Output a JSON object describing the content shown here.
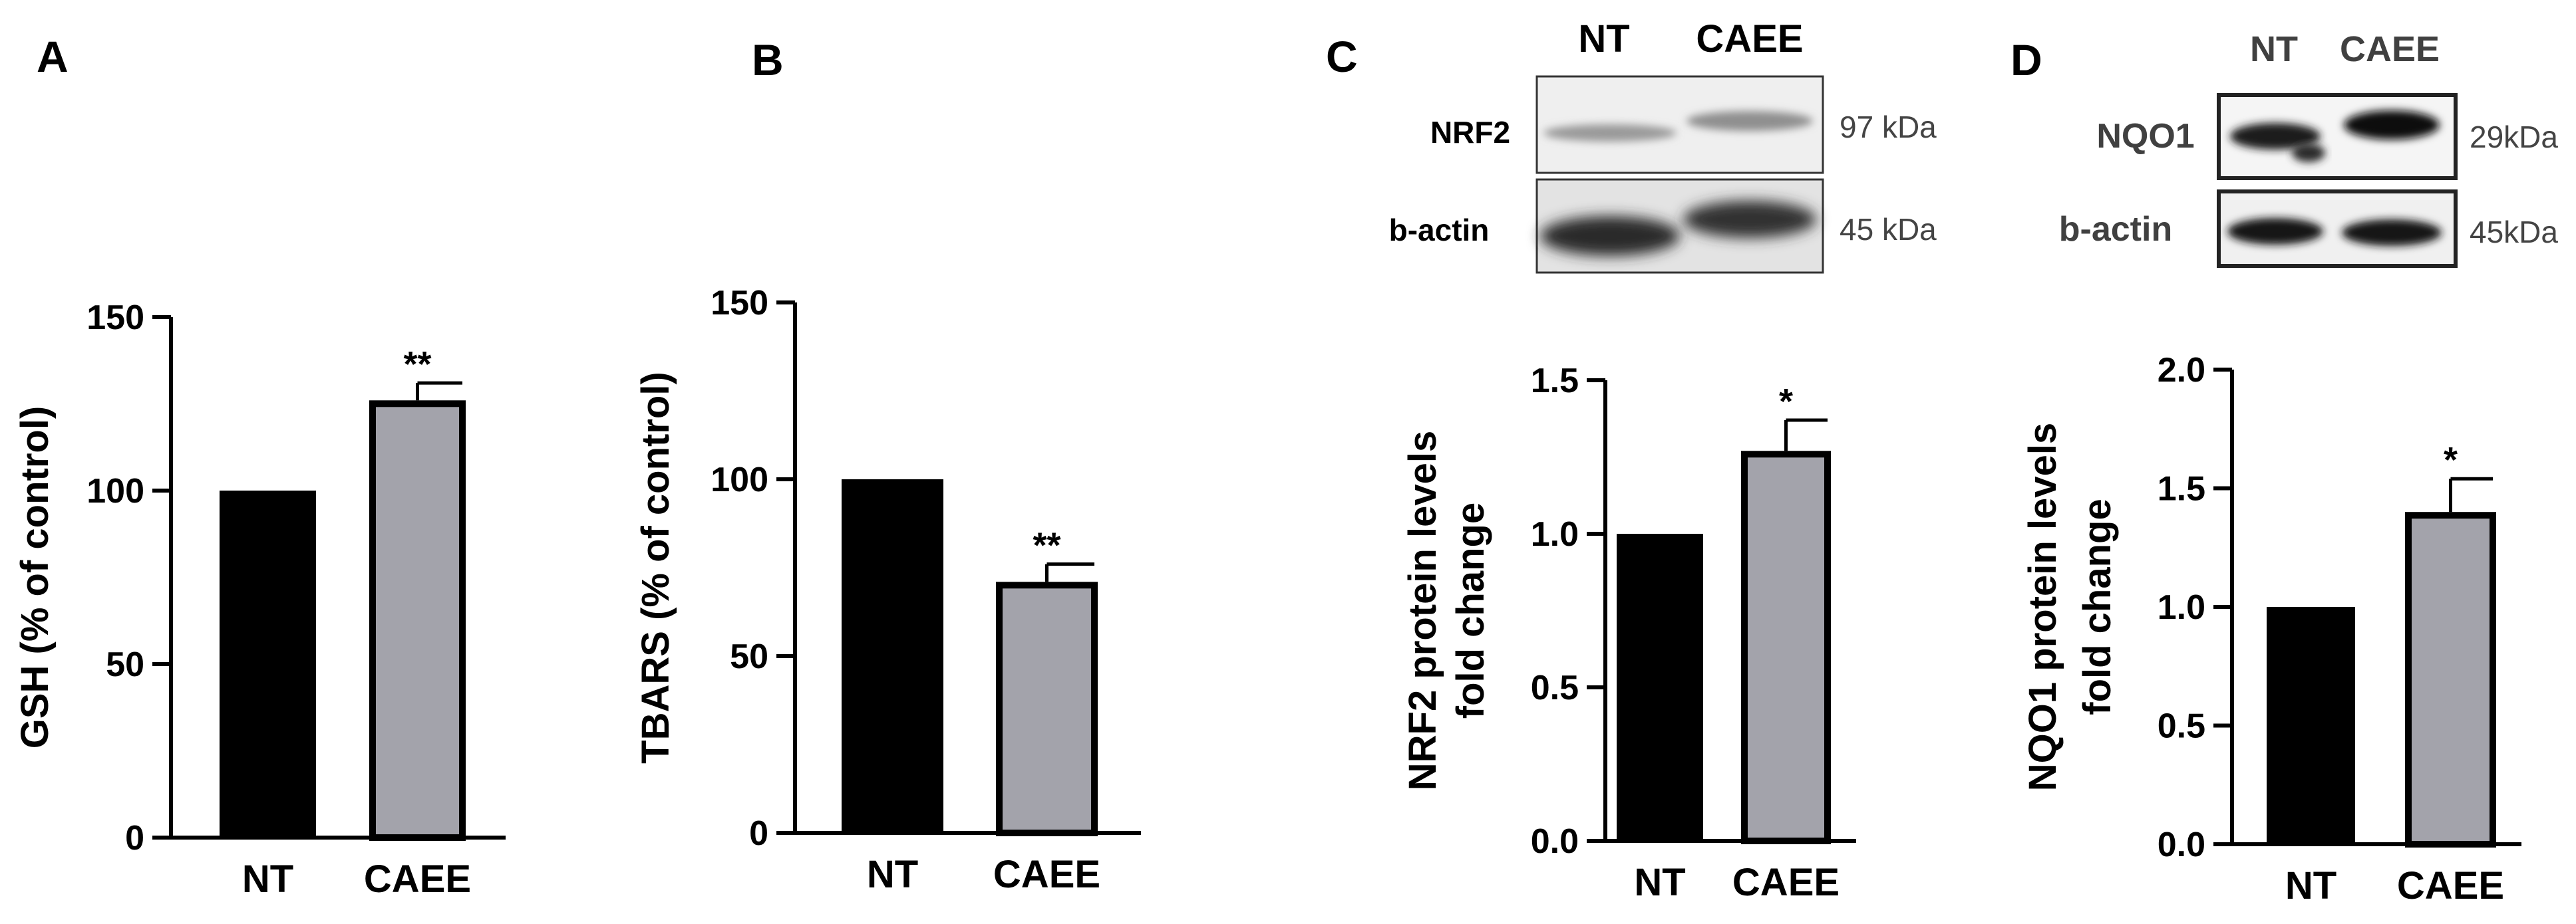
{
  "figure": {
    "panels": [
      {
        "id": "A",
        "letter": "A"
      },
      {
        "id": "B",
        "letter": "B"
      },
      {
        "id": "C",
        "letter": "C"
      },
      {
        "id": "D",
        "letter": "D"
      }
    ]
  },
  "blots": {
    "C": {
      "lanes": [
        "NT",
        "CAEE"
      ],
      "rows": [
        {
          "protein": "NRF2",
          "kda": "97 kDa"
        },
        {
          "protein": "b-actin",
          "kda": "45 kDa"
        }
      ]
    },
    "D": {
      "lanes": [
        "NT",
        "CAEE"
      ],
      "rows": [
        {
          "protein": "NQO1",
          "kda": "29kDa"
        },
        {
          "protein": "b-actin",
          "kda": "45kDa"
        }
      ]
    }
  },
  "chart_data": [
    {
      "panel": "A",
      "type": "bar",
      "title": "",
      "xlabel": "",
      "ylabel": "GSH (% of control)",
      "ylim": [
        0,
        150
      ],
      "yticks": [
        "0",
        "50",
        "100",
        "150"
      ],
      "yticks_values": [
        0,
        50,
        100,
        150
      ],
      "categories": [
        "NT",
        "CAEE"
      ],
      "values": [
        100,
        126
      ],
      "errors": [
        0,
        5
      ],
      "significance": [
        "",
        "**"
      ],
      "colors": [
        "#000000",
        "#a3a3ab"
      ]
    },
    {
      "panel": "B",
      "type": "bar",
      "title": "",
      "xlabel": "",
      "ylabel": "TBARS (% of control)",
      "ylim": [
        0,
        150
      ],
      "yticks": [
        "0",
        "50",
        "100",
        "150"
      ],
      "yticks_values": [
        0,
        50,
        100,
        150
      ],
      "categories": [
        "NT",
        "CAEE"
      ],
      "values": [
        100,
        71
      ],
      "errors": [
        0,
        5
      ],
      "significance": [
        "",
        "**"
      ],
      "colors": [
        "#000000",
        "#a3a3ab"
      ]
    },
    {
      "panel": "C",
      "type": "bar",
      "title": "",
      "xlabel": "",
      "ylabel": [
        "NRF2 protein levels",
        "fold change"
      ],
      "ylim": [
        0,
        1.5
      ],
      "yticks": [
        "0.0",
        "0.5",
        "1.0",
        "1.5"
      ],
      "yticks_values": [
        0,
        0.5,
        1.0,
        1.5
      ],
      "categories": [
        "NT",
        "CAEE"
      ],
      "values": [
        1.0,
        1.27
      ],
      "errors": [
        0,
        0.1
      ],
      "significance": [
        "",
        "*"
      ],
      "colors": [
        "#000000",
        "#a3a3ab"
      ]
    },
    {
      "panel": "D",
      "type": "bar",
      "title": "",
      "xlabel": "",
      "ylabel": [
        "NQO1 protein levels",
        "fold change"
      ],
      "ylim": [
        0,
        2.0
      ],
      "yticks": [
        "0.0",
        "0.5",
        "1.0",
        "1.5",
        "2.0"
      ],
      "yticks_values": [
        0,
        0.5,
        1.0,
        1.5,
        2.0
      ],
      "categories": [
        "NT",
        "CAEE"
      ],
      "values": [
        1.0,
        1.4
      ],
      "errors": [
        0,
        0.14
      ],
      "significance": [
        "",
        "*"
      ],
      "colors": [
        "#000000",
        "#a3a3ab"
      ]
    }
  ]
}
